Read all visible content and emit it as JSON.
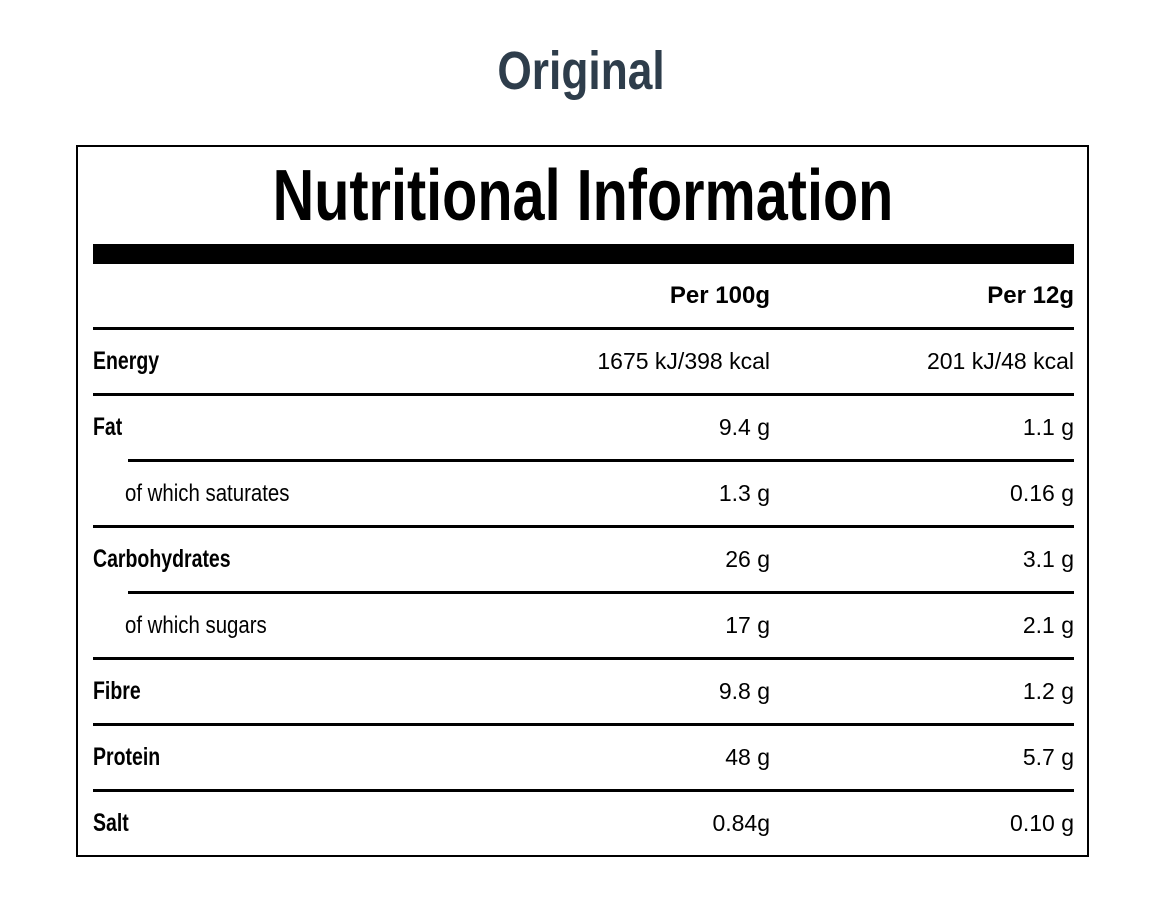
{
  "page": {
    "title": "Original"
  },
  "panel": {
    "heading": "Nutritional Information",
    "columns": {
      "per100": "Per 100g",
      "per12": "Per 12g"
    },
    "rows": [
      {
        "label": "Energy",
        "per100": "1675 kJ/398 kcal",
        "per12": "201 kJ/48 kcal"
      },
      {
        "label": "Fat",
        "per100": "9.4 g",
        "per12": "1.1 g"
      },
      {
        "label": "of which saturates",
        "per100": "1.3 g",
        "per12": "0.16 g"
      },
      {
        "label": "Carbohydrates",
        "per100": "26 g",
        "per12": "3.1 g"
      },
      {
        "label": "of which sugars",
        "per100": "17 g",
        "per12": "2.1 g"
      },
      {
        "label": "Fibre",
        "per100": "9.8 g",
        "per12": "1.2 g"
      },
      {
        "label": "Protein",
        "per100": "48 g",
        "per12": "5.7 g"
      },
      {
        "label": "Salt",
        "per100": "0.84g",
        "per12": "0.10 g"
      }
    ]
  },
  "colors": {
    "title_text": "#2e3d4b",
    "table_text": "#000000",
    "bar": "#000000",
    "border": "#000000",
    "background": "#ffffff"
  }
}
